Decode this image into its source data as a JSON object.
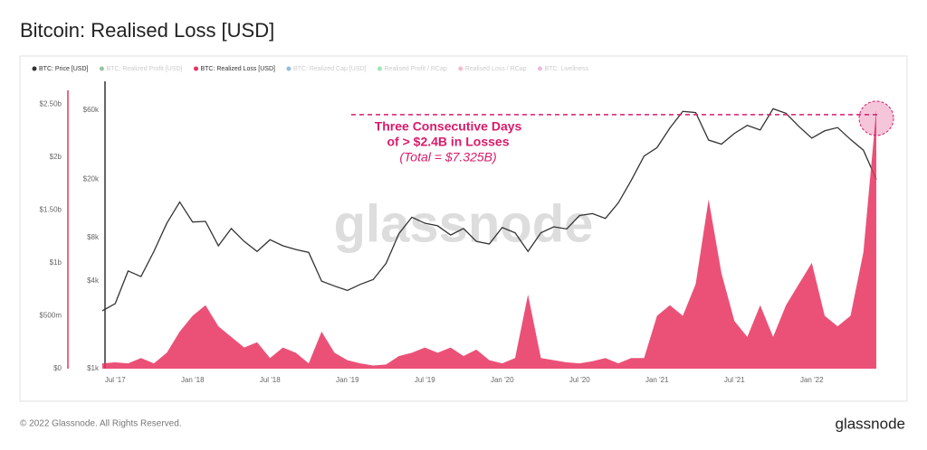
{
  "chart_data": {
    "type": "line",
    "title": "Bitcoin: Realised Loss [USD]",
    "footer": "© 2022 Glassnode. All Rights Reserved.",
    "brand": "glassnode",
    "watermark": "glassnode",
    "legend": [
      {
        "name": "BTC: Price [USD]",
        "color": "#333333",
        "active": true
      },
      {
        "name": "BTC: Realized Profit [USD]",
        "color": "#2e8b3c",
        "active": false
      },
      {
        "name": "BTC: Realized Loss [USD]",
        "color": "#e8335f",
        "active": true
      },
      {
        "name": "BTC: Realized Cap [USD]",
        "color": "#2a7ab8",
        "active": false
      },
      {
        "name": "Realised Profit / RCap",
        "color": "#3ecf6a",
        "active": false
      },
      {
        "name": "Realised Loss / RCap",
        "color": "#f07a9a",
        "active": false
      },
      {
        "name": "BTC: Liveliness",
        "color": "#e070c0",
        "active": false
      }
    ],
    "categories": [
      null,
      "Jul '17",
      null,
      null,
      null,
      null,
      null,
      "Jan '18",
      null,
      null,
      null,
      null,
      null,
      "Jul '18",
      null,
      null,
      null,
      null,
      null,
      "Jan '19",
      null,
      null,
      null,
      null,
      null,
      "Jul '19",
      null,
      null,
      null,
      null,
      null,
      "Jan '20",
      null,
      null,
      null,
      null,
      null,
      "Jul '20",
      null,
      null,
      null,
      null,
      null,
      "Jan '21",
      null,
      null,
      null,
      null,
      null,
      "Jul '21",
      null,
      null,
      null,
      null,
      null,
      "Jan '22",
      null,
      null,
      null,
      null,
      null
    ],
    "series": [
      {
        "name": "BTC: Price [USD]",
        "color": "#333333",
        "axis": "y2",
        "values": [
          2500,
          2800,
          4700,
          4300,
          6400,
          10000,
          14000,
          10200,
          10300,
          7000,
          9200,
          7500,
          6400,
          7700,
          7000,
          6600,
          6300,
          4000,
          3700,
          3450,
          3800,
          4100,
          5300,
          8500,
          11000,
          10000,
          9600,
          8300,
          9200,
          7500,
          7200,
          9350,
          8600,
          6400,
          8600,
          9450,
          9140,
          11300,
          11650,
          10800,
          13800,
          19700,
          29000,
          33100,
          45200,
          58800,
          57700,
          37300,
          35000,
          41500,
          47100,
          43800,
          61300,
          57000,
          46300,
          38500,
          43200,
          45500,
          37700,
          31800,
          20000
        ]
      },
      {
        "name": "BTC: Realized Loss [USD]",
        "color": "#e8335f",
        "axis": "y",
        "values": [
          50000000,
          60000000,
          50000000,
          100000000,
          50000000,
          150000000,
          350000000,
          500000000,
          600000000,
          400000000,
          300000000,
          200000000,
          250000000,
          100000000,
          200000000,
          150000000,
          50000000,
          350000000,
          150000000,
          80000000,
          50000000,
          30000000,
          40000000,
          120000000,
          150000000,
          200000000,
          150000000,
          200000000,
          120000000,
          180000000,
          80000000,
          50000000,
          100000000,
          700000000,
          100000000,
          80000000,
          60000000,
          50000000,
          70000000,
          100000000,
          50000000,
          100000000,
          100000000,
          500000000,
          600000000,
          500000000,
          800000000,
          1600000000,
          900000000,
          450000000,
          300000000,
          600000000,
          300000000,
          600000000,
          800000000,
          1000000000,
          500000000,
          400000000,
          500000000,
          1100000000,
          2450000000
        ]
      }
    ],
    "ylim": [
      0,
      2630000000
    ],
    "yticks": [
      {
        "value": 0,
        "label": "$0"
      },
      {
        "value": 500000000,
        "label": "$500m"
      },
      {
        "value": 1000000000,
        "label": "$1b"
      },
      {
        "value": 1500000000,
        "label": "$1.50b"
      },
      {
        "value": 2000000000,
        "label": "$2b"
      },
      {
        "value": 2500000000,
        "label": "$2.50b"
      }
    ],
    "y2lim": [
      1000,
      82000
    ],
    "y2ticks": [
      {
        "value": 1000,
        "label": "$1k"
      },
      {
        "value": 4000,
        "label": "$4k"
      },
      {
        "value": 8000,
        "label": "$8k"
      },
      {
        "value": 20000,
        "label": "$20k"
      },
      {
        "value": 60000,
        "label": "$60k"
      }
    ],
    "y2log": true,
    "annotation": {
      "lines": [
        "Three Consecutive Days",
        "of > $2.4B in Losses",
        "(Total = $7.325B)"
      ],
      "value": 2400000000,
      "color": "#d81b6a"
    }
  }
}
